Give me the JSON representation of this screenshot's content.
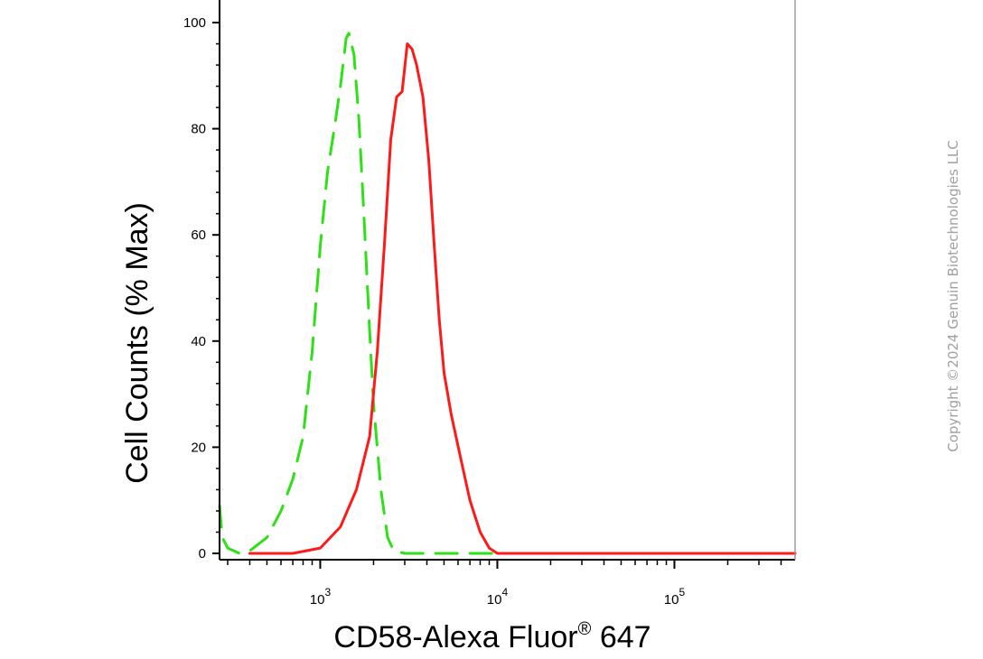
{
  "chart_data": {
    "type": "line",
    "xlabel": "CD58-Alexa Fluor",
    "xlabel_superscript": "®",
    "xlabel_suffix": " 647",
    "ylabel": "Cell Counts (% Max)",
    "x_scale": "log",
    "xlim": [
      270,
      480000
    ],
    "ylim": [
      0,
      100
    ],
    "y_ticks": [
      "0",
      "20",
      "40",
      "60",
      "80",
      "100"
    ],
    "x_ticks": [
      {
        "value": 1000,
        "base": "10",
        "exp": "3"
      },
      {
        "value": 10000,
        "base": "10",
        "exp": "4"
      },
      {
        "value": 100000,
        "base": "10",
        "exp": "5"
      }
    ],
    "grid": false,
    "series": [
      {
        "color": "#2ee016",
        "style": "dashed",
        "points": [
          [
            270,
            9
          ],
          [
            280,
            3
          ],
          [
            300,
            1
          ],
          [
            350,
            0
          ],
          [
            400,
            0.5
          ],
          [
            500,
            3
          ],
          [
            600,
            8
          ],
          [
            700,
            14
          ],
          [
            800,
            22
          ],
          [
            900,
            38
          ],
          [
            1000,
            58
          ],
          [
            1100,
            72
          ],
          [
            1200,
            80
          ],
          [
            1300,
            88
          ],
          [
            1400,
            97
          ],
          [
            1450,
            98
          ],
          [
            1550,
            94
          ],
          [
            1650,
            82
          ],
          [
            1750,
            66
          ],
          [
            1900,
            42
          ],
          [
            2000,
            28
          ],
          [
            2200,
            12
          ],
          [
            2400,
            3
          ],
          [
            2600,
            0.5
          ],
          [
            3000,
            0
          ],
          [
            10000,
            0
          ],
          [
            100000,
            0
          ],
          [
            480000,
            0
          ]
        ]
      },
      {
        "color": "#ff1a1a",
        "style": "solid",
        "points": [
          [
            400,
            0
          ],
          [
            700,
            0
          ],
          [
            1000,
            1
          ],
          [
            1300,
            5
          ],
          [
            1600,
            12
          ],
          [
            1900,
            22
          ],
          [
            2100,
            38
          ],
          [
            2300,
            58
          ],
          [
            2500,
            78
          ],
          [
            2700,
            86
          ],
          [
            2900,
            87
          ],
          [
            3100,
            96
          ],
          [
            3300,
            95
          ],
          [
            3500,
            92
          ],
          [
            3800,
            86
          ],
          [
            4100,
            74
          ],
          [
            4400,
            58
          ],
          [
            4700,
            44
          ],
          [
            5000,
            34
          ],
          [
            5500,
            26
          ],
          [
            6200,
            18
          ],
          [
            7000,
            10
          ],
          [
            8000,
            4
          ],
          [
            9000,
            1
          ],
          [
            10000,
            0
          ],
          [
            100000,
            0
          ],
          [
            480000,
            0
          ]
        ]
      }
    ]
  },
  "watermark": "Copyright ©2024 Genuin Biotechnologies LLC"
}
